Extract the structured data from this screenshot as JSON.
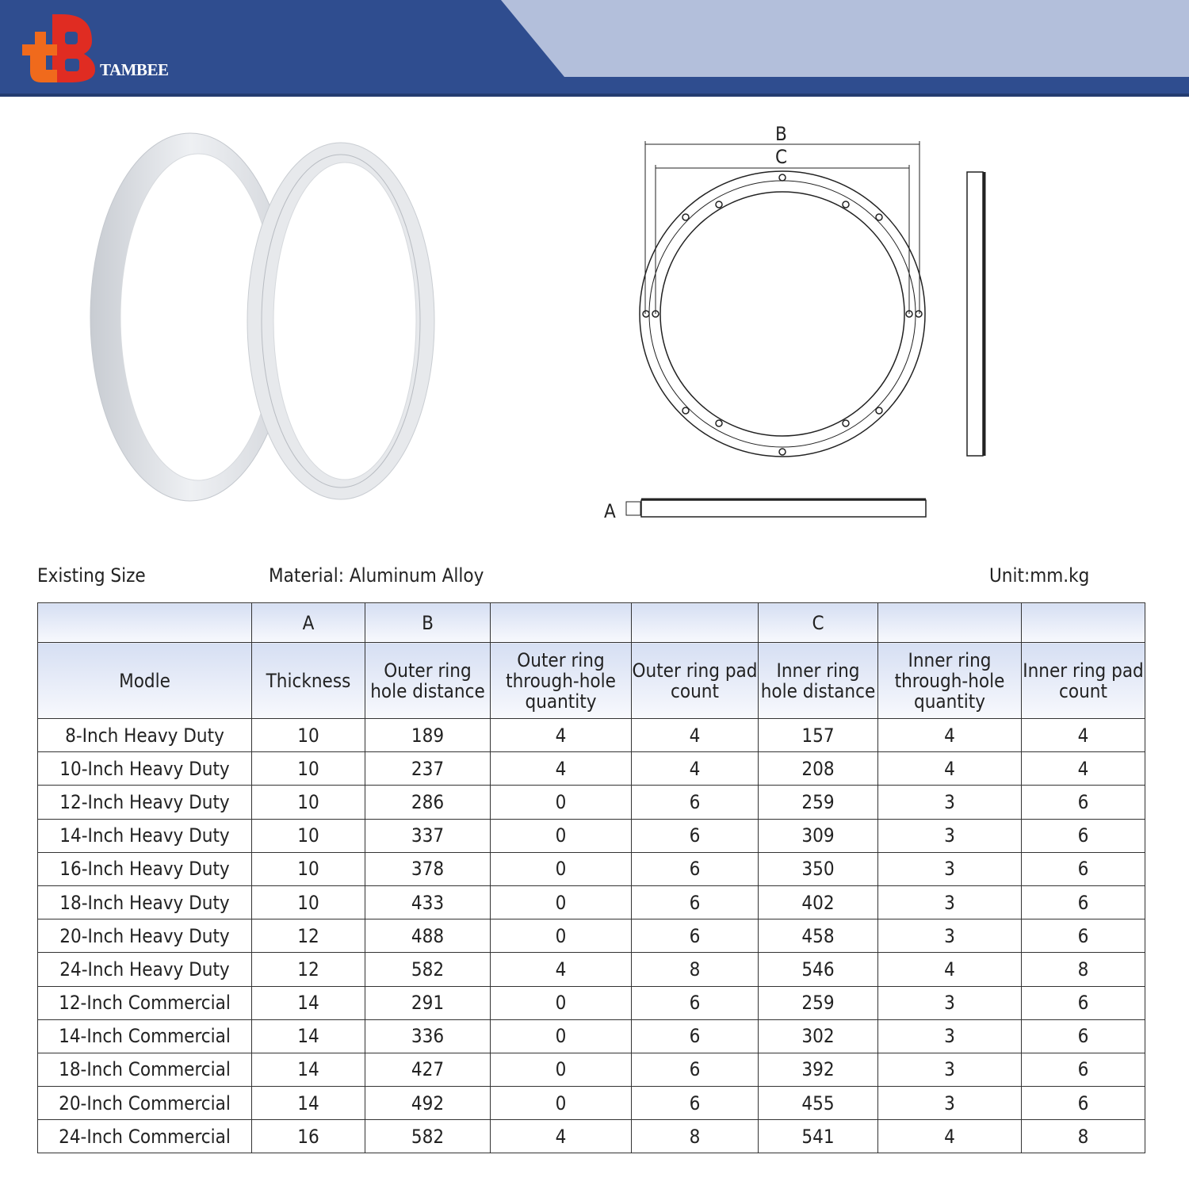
{
  "brand": {
    "name": "TAMBEE",
    "colors": {
      "banner": "#2f4d8f",
      "accent": "#b3bfdb",
      "logo_red": "#e02c22",
      "logo_orange": "#f06a1c"
    }
  },
  "diagram": {
    "labels": {
      "a": "A",
      "b": "B",
      "c": "C"
    }
  },
  "info": {
    "existing": "Existing Size",
    "material": "Material: Aluminum Alloy",
    "unit": "Unit:mm.kg"
  },
  "table": {
    "group_headers": [
      "",
      "A",
      "B",
      "",
      "",
      "C",
      "",
      ""
    ],
    "headers": [
      "Modle",
      "Thickness",
      "Outer ring hole distance",
      "Outer ring through-hole quantity",
      "Outer ring pad count",
      "Inner ring hole distance",
      "Inner ring through-hole quantity",
      "Inner ring pad count"
    ],
    "rows": [
      [
        "8-Inch Heavy Duty",
        "10",
        "189",
        "4",
        "4",
        "157",
        "4",
        "4"
      ],
      [
        "10-Inch Heavy Duty",
        "10",
        "237",
        "4",
        "4",
        "208",
        "4",
        "4"
      ],
      [
        "12-Inch Heavy Duty",
        "10",
        "286",
        "0",
        "6",
        "259",
        "3",
        "6"
      ],
      [
        "14-Inch Heavy Duty",
        "10",
        "337",
        "0",
        "6",
        "309",
        "3",
        "6"
      ],
      [
        "16-Inch Heavy Duty",
        "10",
        "378",
        "0",
        "6",
        "350",
        "3",
        "6"
      ],
      [
        "18-Inch Heavy Duty",
        "10",
        "433",
        "0",
        "6",
        "402",
        "3",
        "6"
      ],
      [
        "20-Inch Heavy Duty",
        "12",
        "488",
        "0",
        "6",
        "458",
        "3",
        "6"
      ],
      [
        "24-Inch Heavy Duty",
        "12",
        "582",
        "4",
        "8",
        "546",
        "4",
        "8"
      ],
      [
        "12-Inch Commercial",
        "14",
        "291",
        "0",
        "6",
        "259",
        "3",
        "6"
      ],
      [
        "14-Inch Commercial",
        "14",
        "336",
        "0",
        "6",
        "302",
        "3",
        "6"
      ],
      [
        "18-Inch Commercial",
        "14",
        "427",
        "0",
        "6",
        "392",
        "3",
        "6"
      ],
      [
        "20-Inch Commercial",
        "14",
        "492",
        "0",
        "6",
        "455",
        "3",
        "6"
      ],
      [
        "24-Inch Commercial",
        "16",
        "582",
        "4",
        "8",
        "541",
        "4",
        "8"
      ]
    ]
  }
}
